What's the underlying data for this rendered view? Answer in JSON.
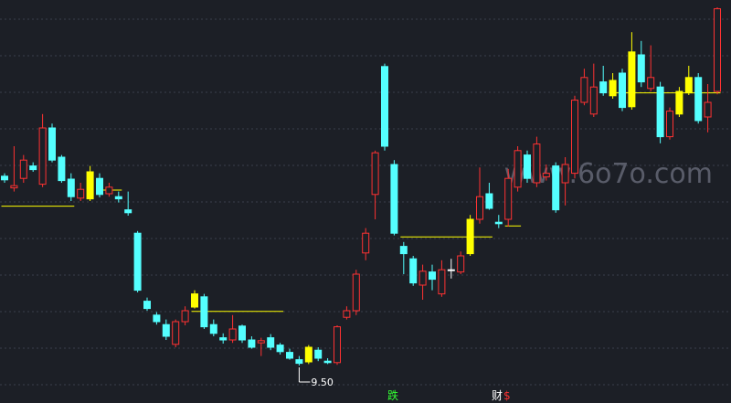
{
  "chart_data": {
    "type": "candlestick",
    "ylim": [
      9.0,
      14.5
    ],
    "low_label": "9.50",
    "watermark": "www.6o7o.com",
    "markers": [
      {
        "text": "跌",
        "color": "#33ff33"
      },
      {
        "text": "财",
        "color": "#ffffff"
      },
      {
        "text": "$",
        "color": "#ff3232"
      }
    ],
    "level_color": "#ffff00",
    "levels": [
      {
        "value": 11.68,
        "from": 0,
        "to": 7
      },
      {
        "value": 11.9,
        "from": 10,
        "to": 12
      },
      {
        "value": 10.24,
        "from": 20,
        "to": 29
      },
      {
        "value": 11.26,
        "from": 42,
        "to": 51
      },
      {
        "value": 11.41,
        "from": 53,
        "to": 54
      },
      {
        "value": 13.23,
        "from": 64,
        "to": 75
      }
    ],
    "candles": [
      {
        "open": 12.09,
        "high": 12.13,
        "low": 12.0,
        "close": 12.04,
        "color": "#54ffff"
      },
      {
        "open": 11.93,
        "high": 12.5,
        "low": 11.88,
        "close": 11.96,
        "color": "#ff3232"
      },
      {
        "open": 12.06,
        "high": 12.38,
        "low": 12.0,
        "close": 12.31,
        "color": "#ff3232"
      },
      {
        "open": 12.23,
        "high": 12.28,
        "low": 12.15,
        "close": 12.18,
        "color": "#54ffff"
      },
      {
        "open": 11.98,
        "high": 12.94,
        "low": 11.94,
        "close": 12.75,
        "color": "#ff3232"
      },
      {
        "open": 12.75,
        "high": 12.81,
        "low": 12.28,
        "close": 12.31,
        "color": "#54ffff"
      },
      {
        "open": 12.35,
        "high": 12.38,
        "low": 12.0,
        "close": 12.03,
        "color": "#54ffff"
      },
      {
        "open": 12.05,
        "high": 12.13,
        "low": 11.75,
        "close": 11.81,
        "color": "#54ffff"
      },
      {
        "open": 11.79,
        "high": 12.0,
        "low": 11.75,
        "close": 11.91,
        "color": "#ff3232"
      },
      {
        "open": 12.15,
        "high": 12.23,
        "low": 11.75,
        "close": 11.78,
        "color": "#ffff00"
      },
      {
        "open": 12.06,
        "high": 12.13,
        "low": 11.8,
        "close": 11.84,
        "color": "#54ffff"
      },
      {
        "open": 11.85,
        "high": 12.0,
        "low": 11.81,
        "close": 11.94,
        "color": "#ff3232"
      },
      {
        "open": 11.81,
        "high": 11.88,
        "low": 11.73,
        "close": 11.78,
        "color": "#54ffff"
      },
      {
        "open": 11.63,
        "high": 11.88,
        "low": 11.55,
        "close": 11.59,
        "color": "#54ffff"
      },
      {
        "open": 11.31,
        "high": 11.34,
        "low": 10.5,
        "close": 10.53,
        "color": "#54ffff"
      },
      {
        "open": 10.38,
        "high": 10.43,
        "low": 10.25,
        "close": 10.28,
        "color": "#54ffff"
      },
      {
        "open": 10.19,
        "high": 10.23,
        "low": 10.06,
        "close": 10.1,
        "color": "#54ffff"
      },
      {
        "open": 10.06,
        "high": 10.13,
        "low": 9.85,
        "close": 9.9,
        "color": "#54ffff"
      },
      {
        "open": 9.79,
        "high": 10.13,
        "low": 9.75,
        "close": 10.1,
        "color": "#ff3232"
      },
      {
        "open": 10.1,
        "high": 10.31,
        "low": 10.05,
        "close": 10.25,
        "color": "#ff3232"
      },
      {
        "open": 10.48,
        "high": 10.53,
        "low": 10.28,
        "close": 10.3,
        "color": "#ffff00"
      },
      {
        "open": 10.44,
        "high": 10.48,
        "low": 10.0,
        "close": 10.03,
        "color": "#54ffff"
      },
      {
        "open": 10.06,
        "high": 10.13,
        "low": 9.9,
        "close": 9.94,
        "color": "#54ffff"
      },
      {
        "open": 9.88,
        "high": 9.94,
        "low": 9.8,
        "close": 9.85,
        "color": "#54ffff"
      },
      {
        "open": 9.85,
        "high": 10.19,
        "low": 9.81,
        "close": 10.0,
        "color": "#ff3232"
      },
      {
        "open": 10.04,
        "high": 10.06,
        "low": 9.81,
        "close": 9.85,
        "color": "#54ffff"
      },
      {
        "open": 9.85,
        "high": 9.9,
        "low": 9.73,
        "close": 9.75,
        "color": "#54ffff"
      },
      {
        "open": 9.81,
        "high": 9.88,
        "low": 9.63,
        "close": 9.84,
        "color": "#ff3232"
      },
      {
        "open": 9.88,
        "high": 9.93,
        "low": 9.71,
        "close": 9.75,
        "color": "#54ffff"
      },
      {
        "open": 9.78,
        "high": 9.81,
        "low": 9.65,
        "close": 9.69,
        "color": "#54ffff"
      },
      {
        "open": 9.68,
        "high": 9.73,
        "low": 9.58,
        "close": 9.6,
        "color": "#54ffff"
      },
      {
        "open": 9.58,
        "high": 9.63,
        "low": 9.5,
        "close": 9.53,
        "color": "#54ffff"
      },
      {
        "open": 9.75,
        "high": 9.78,
        "low": 9.52,
        "close": 9.55,
        "color": "#ffff00"
      },
      {
        "open": 9.71,
        "high": 9.75,
        "low": 9.56,
        "close": 9.6,
        "color": "#54ffff"
      },
      {
        "open": 9.56,
        "high": 9.6,
        "low": 9.52,
        "close": 9.54,
        "color": "#54ffff"
      },
      {
        "open": 9.54,
        "high": 10.05,
        "low": 9.51,
        "close": 10.03,
        "color": "#ff3232"
      },
      {
        "open": 10.16,
        "high": 10.31,
        "low": 10.13,
        "close": 10.25,
        "color": "#ff3232"
      },
      {
        "open": 10.25,
        "high": 10.81,
        "low": 10.19,
        "close": 10.75,
        "color": "#ff3232"
      },
      {
        "open": 11.04,
        "high": 11.38,
        "low": 10.94,
        "close": 11.31,
        "color": "#ff3232"
      },
      {
        "open": 11.84,
        "high": 12.44,
        "low": 11.5,
        "close": 12.41,
        "color": "#ff3232"
      },
      {
        "open": 13.59,
        "high": 13.63,
        "low": 12.44,
        "close": 12.5,
        "color": "#54ffff"
      },
      {
        "open": 12.25,
        "high": 12.31,
        "low": 11.28,
        "close": 11.31,
        "color": "#54ffff"
      },
      {
        "open": 11.13,
        "high": 11.19,
        "low": 10.75,
        "close": 11.03,
        "color": "#54ffff"
      },
      {
        "open": 10.96,
        "high": 11.0,
        "low": 10.59,
        "close": 10.63,
        "color": "#54ffff"
      },
      {
        "open": 10.6,
        "high": 10.88,
        "low": 10.4,
        "close": 10.79,
        "color": "#ff3232"
      },
      {
        "open": 10.78,
        "high": 10.88,
        "low": 10.53,
        "close": 10.68,
        "color": "#54ffff"
      },
      {
        "open": 10.48,
        "high": 10.94,
        "low": 10.44,
        "close": 10.81,
        "color": "#ff3232"
      },
      {
        "open": 10.8,
        "high": 10.96,
        "low": 10.69,
        "close": 10.81,
        "color": "#ffffff"
      },
      {
        "open": 10.78,
        "high": 11.06,
        "low": 10.75,
        "close": 11.0,
        "color": "#ff3232"
      },
      {
        "open": 11.5,
        "high": 11.56,
        "low": 11.0,
        "close": 11.03,
        "color": "#ffff00"
      },
      {
        "open": 11.5,
        "high": 12.21,
        "low": 11.44,
        "close": 11.81,
        "color": "#ff3232"
      },
      {
        "open": 11.85,
        "high": 12.0,
        "low": 11.63,
        "close": 11.65,
        "color": "#54ffff"
      },
      {
        "open": 11.46,
        "high": 11.56,
        "low": 11.38,
        "close": 11.44,
        "color": "#54ffff"
      },
      {
        "open": 11.5,
        "high": 12.19,
        "low": 11.4,
        "close": 12.06,
        "color": "#ff3232"
      },
      {
        "open": 11.94,
        "high": 12.5,
        "low": 11.88,
        "close": 12.44,
        "color": "#ff3232"
      },
      {
        "open": 12.38,
        "high": 12.44,
        "low": 12.0,
        "close": 12.06,
        "color": "#54ffff"
      },
      {
        "open": 12.0,
        "high": 12.63,
        "low": 11.94,
        "close": 12.53,
        "color": "#ff3232"
      },
      {
        "open": 12.08,
        "high": 12.25,
        "low": 12.03,
        "close": 12.13,
        "color": "#ff3232"
      },
      {
        "open": 12.23,
        "high": 12.28,
        "low": 11.59,
        "close": 11.63,
        "color": "#54ffff"
      },
      {
        "open": 12.0,
        "high": 12.35,
        "low": 11.69,
        "close": 12.25,
        "color": "#ff3232"
      },
      {
        "open": 12.13,
        "high": 13.19,
        "low": 12.06,
        "close": 13.13,
        "color": "#ff3232"
      },
      {
        "open": 13.1,
        "high": 13.56,
        "low": 13.06,
        "close": 13.44,
        "color": "#ff3232"
      },
      {
        "open": 12.94,
        "high": 13.63,
        "low": 12.9,
        "close": 13.31,
        "color": "#ff3232"
      },
      {
        "open": 13.38,
        "high": 13.6,
        "low": 13.19,
        "close": 13.23,
        "color": "#54ffff"
      },
      {
        "open": 13.4,
        "high": 13.5,
        "low": 13.15,
        "close": 13.19,
        "color": "#ffff00"
      },
      {
        "open": 13.5,
        "high": 13.56,
        "low": 12.98,
        "close": 13.03,
        "color": "#54ffff"
      },
      {
        "open": 13.79,
        "high": 14.06,
        "low": 13.0,
        "close": 13.04,
        "color": "#ffff00"
      },
      {
        "open": 13.75,
        "high": 13.94,
        "low": 13.31,
        "close": 13.38,
        "color": "#54ffff"
      },
      {
        "open": 13.29,
        "high": 13.88,
        "low": 13.25,
        "close": 13.44,
        "color": "#ff3232"
      },
      {
        "open": 13.31,
        "high": 13.38,
        "low": 12.54,
        "close": 12.63,
        "color": "#54ffff"
      },
      {
        "open": 12.63,
        "high": 13.03,
        "low": 12.59,
        "close": 12.98,
        "color": "#ff3232"
      },
      {
        "open": 13.25,
        "high": 13.31,
        "low": 12.9,
        "close": 12.94,
        "color": "#ffff00"
      },
      {
        "open": 13.44,
        "high": 13.6,
        "low": 13.2,
        "close": 13.23,
        "color": "#ffff00"
      },
      {
        "open": 13.44,
        "high": 13.5,
        "low": 12.81,
        "close": 12.85,
        "color": "#54ffff"
      },
      {
        "open": 12.9,
        "high": 13.35,
        "low": 12.69,
        "close": 13.1,
        "color": "#ff3232"
      },
      {
        "open": 13.25,
        "high": 14.4,
        "low": 13.21,
        "close": 14.38,
        "color": "#ff3232"
      }
    ]
  }
}
